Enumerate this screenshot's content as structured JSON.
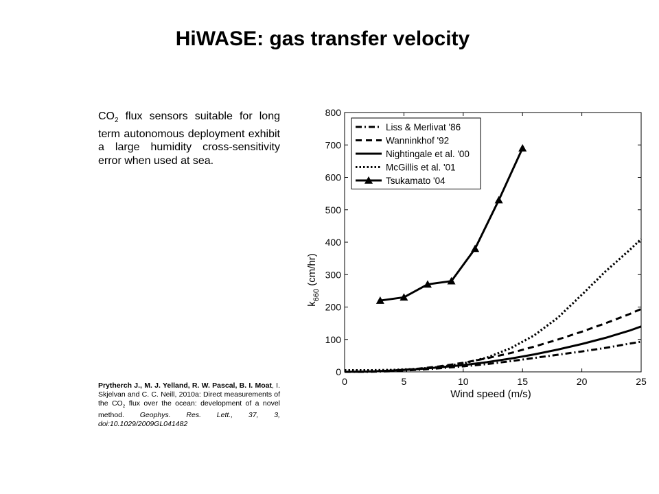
{
  "page": {
    "title": "HiWASE: gas transfer velocity",
    "intro_co": "CO",
    "intro_sub": "2",
    "intro_rest": " flux sensors suitable for long term autonomous deployment exhibit a large humidity cross-sensitivity error when used at sea.",
    "ref_authors": "Prytherch J., M. J. Yelland, R. W. Pascal, B. I. Moat",
    "ref_part1": ", I. Skjelvan and C. C. Neill, 2010a: Direct measurements of the CO",
    "ref_sub": "2",
    "ref_part2": " flux over the ocean: development of a novel method. ",
    "ref_journal": "Geophys. Res. Lett., 37, 3,  doi:10.1029/2009GL041482"
  },
  "chart_data": {
    "type": "line",
    "xlabel": "Wind speed (m/s)",
    "ylabel_main": "k",
    "ylabel_sub": "660",
    "ylabel_unit": " (cm/hr)",
    "xlim": [
      0,
      25
    ],
    "ylim": [
      0,
      800
    ],
    "xticks": [
      0,
      5,
      10,
      15,
      20,
      25
    ],
    "yticks": [
      0,
      100,
      200,
      300,
      400,
      500,
      600,
      700,
      800
    ],
    "legend_position": "top-left",
    "grid": false,
    "series": [
      {
        "name": "Liss & Merlivat '86",
        "style": "dashdot",
        "x": [
          0,
          2,
          4,
          6,
          8,
          10,
          12,
          14,
          16,
          18,
          20,
          22,
          24,
          25
        ],
        "y": [
          0,
          0,
          2,
          6,
          11,
          17,
          24,
          33,
          43,
          53,
          63,
          74,
          87,
          93
        ]
      },
      {
        "name": "Wanninkhof '92",
        "style": "dashed",
        "x": [
          0,
          2,
          4,
          6,
          8,
          10,
          12,
          14,
          16,
          18,
          20,
          22,
          24,
          25
        ],
        "y": [
          0,
          1,
          4,
          9,
          17,
          28,
          42,
          58,
          78,
          100,
          124,
          150,
          178,
          194
        ]
      },
      {
        "name": "Nightingale et al. '00",
        "style": "solid",
        "x": [
          0,
          2,
          4,
          6,
          8,
          10,
          12,
          14,
          16,
          18,
          20,
          22,
          24,
          25
        ],
        "y": [
          0,
          1,
          4,
          8,
          14,
          21,
          30,
          41,
          54,
          69,
          86,
          105,
          127,
          140
        ]
      },
      {
        "name": "McGillis et al. '01",
        "style": "dotted",
        "x": [
          0,
          2,
          4,
          6,
          8,
          10,
          12,
          14,
          16,
          18,
          20,
          22,
          24,
          25
        ],
        "y": [
          5,
          5,
          6,
          9,
          15,
          26,
          44,
          73,
          113,
          168,
          238,
          310,
          375,
          410
        ]
      },
      {
        "name": "Tsukamato '04",
        "style": "solid-triangle",
        "x": [
          3,
          5,
          7,
          9,
          11,
          13,
          15
        ],
        "y": [
          220,
          230,
          270,
          280,
          380,
          530,
          690
        ]
      }
    ]
  }
}
